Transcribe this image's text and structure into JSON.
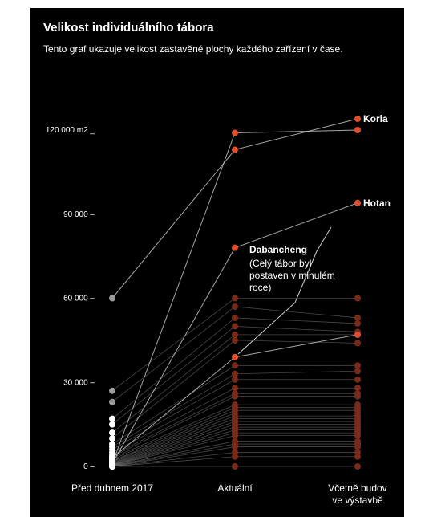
{
  "title": "Velikost individuálního tábora",
  "subtitle": "Tento graf ukazuje velikost zastavěné plochy každého zařízení v čase.",
  "colors": {
    "background": "#000000",
    "highlight": "#e04e2a",
    "muted": "#7a2a18",
    "before_dot": "#ffffff",
    "before_dot_gray": "#9a9a9a",
    "line": "#cfcfcf"
  },
  "chart_data": {
    "type": "line",
    "chart_kind": "slope",
    "categories": [
      "Před dubnem 2017",
      "Aktuální",
      "Včetně budov ve výstavbě"
    ],
    "y_ticks": [
      {
        "value": 0,
        "label": "0 –"
      },
      {
        "value": 30000,
        "label": "30 000 –"
      },
      {
        "value": 60000,
        "label": "60 000 –"
      },
      {
        "value": 90000,
        "label": "90 000 –"
      },
      {
        "value": 120000,
        "label": "120 000 m2 _"
      }
    ],
    "ylim": [
      0,
      120000
    ],
    "grid": false,
    "highlighted": [
      {
        "values": [
          60000,
          113000,
          124000
        ],
        "label": "Korla"
      },
      {
        "values": [
          1000,
          119000,
          120000
        ]
      },
      {
        "values": [
          1000,
          78000,
          94000
        ],
        "label": "Hotan"
      },
      {
        "values": [
          3000,
          39000,
          47000
        ],
        "label": "Dabancheng",
        "note": [
          "(Celý tábor byl",
          "postaven v minulém",
          "roce)"
        ]
      }
    ],
    "series": [
      {
        "values": [
          27000,
          60000,
          60000
        ]
      },
      {
        "values": [
          23000,
          57000,
          53000
        ]
      },
      {
        "values": [
          17000,
          53000,
          51000
        ]
      },
      {
        "values": [
          15000,
          50000,
          48000
        ]
      },
      {
        "values": [
          12000,
          47000,
          47000
        ]
      },
      {
        "values": [
          10000,
          45000,
          44000
        ]
      },
      {
        "values": [
          8000,
          36000,
          36000
        ]
      },
      {
        "values": [
          7000,
          33000,
          34000
        ]
      },
      {
        "values": [
          6000,
          31000,
          31000
        ]
      },
      {
        "values": [
          5000,
          28000,
          28000
        ]
      },
      {
        "values": [
          4000,
          26000,
          26000
        ]
      },
      {
        "values": [
          3500,
          25000,
          25000
        ]
      },
      {
        "values": [
          3000,
          22000,
          22000
        ]
      },
      {
        "values": [
          2500,
          21000,
          21000
        ]
      },
      {
        "values": [
          2000,
          20000,
          20000
        ]
      },
      {
        "values": [
          1800,
          19000,
          19000
        ]
      },
      {
        "values": [
          1500,
          18000,
          18000
        ]
      },
      {
        "values": [
          1200,
          17000,
          17000
        ]
      },
      {
        "values": [
          1000,
          16000,
          16000
        ]
      },
      {
        "values": [
          800,
          15000,
          15000
        ]
      },
      {
        "values": [
          600,
          14000,
          14000
        ]
      },
      {
        "values": [
          500,
          13000,
          13000
        ]
      },
      {
        "values": [
          400,
          12000,
          12000
        ]
      },
      {
        "values": [
          300,
          11000,
          11000
        ]
      },
      {
        "values": [
          200,
          9000,
          9000
        ]
      },
      {
        "values": [
          100,
          8000,
          8000
        ]
      },
      {
        "values": [
          0,
          7000,
          7000
        ]
      },
      {
        "values": [
          0,
          5000,
          5000
        ]
      },
      {
        "values": [
          0,
          3500,
          3500
        ]
      },
      {
        "values": [
          0,
          0,
          0
        ]
      }
    ]
  }
}
